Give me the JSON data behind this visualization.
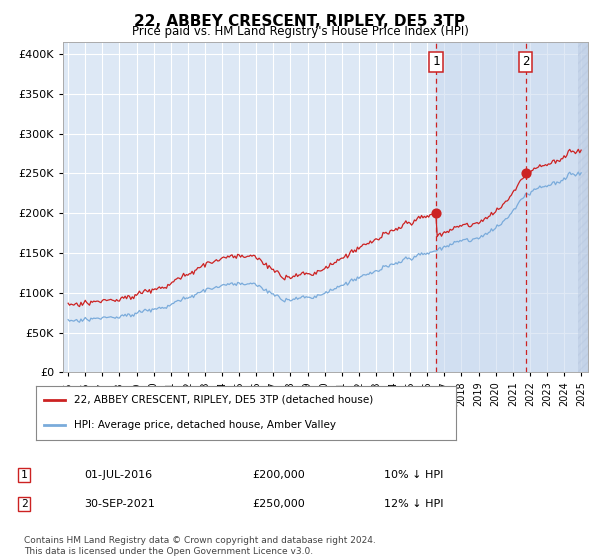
{
  "title": "22, ABBEY CRESCENT, RIPLEY, DE5 3TP",
  "subtitle": "Price paid vs. HM Land Registry's House Price Index (HPI)",
  "ytick_values": [
    0,
    50000,
    100000,
    150000,
    200000,
    250000,
    300000,
    350000,
    400000
  ],
  "ylim": [
    0,
    415000
  ],
  "sale1_year": 2016.5,
  "sale1_price": 200000,
  "sale2_year": 2021.75,
  "sale2_price": 250000,
  "legend_label1": "22, ABBEY CRESCENT, RIPLEY, DE5 3TP (detached house)",
  "legend_label2": "HPI: Average price, detached house, Amber Valley",
  "footnote": "Contains HM Land Registry data © Crown copyright and database right 2024.\nThis data is licensed under the Open Government Licence v3.0.",
  "hpi_color": "#7aabdb",
  "price_color": "#cc2222",
  "background_color": "#dde8f5",
  "grid_color": "#ffffff",
  "vline_color": "#cc2222",
  "shade_color": "#c8d8ee",
  "xlim_left": 1994.7,
  "xlim_right": 2025.4
}
